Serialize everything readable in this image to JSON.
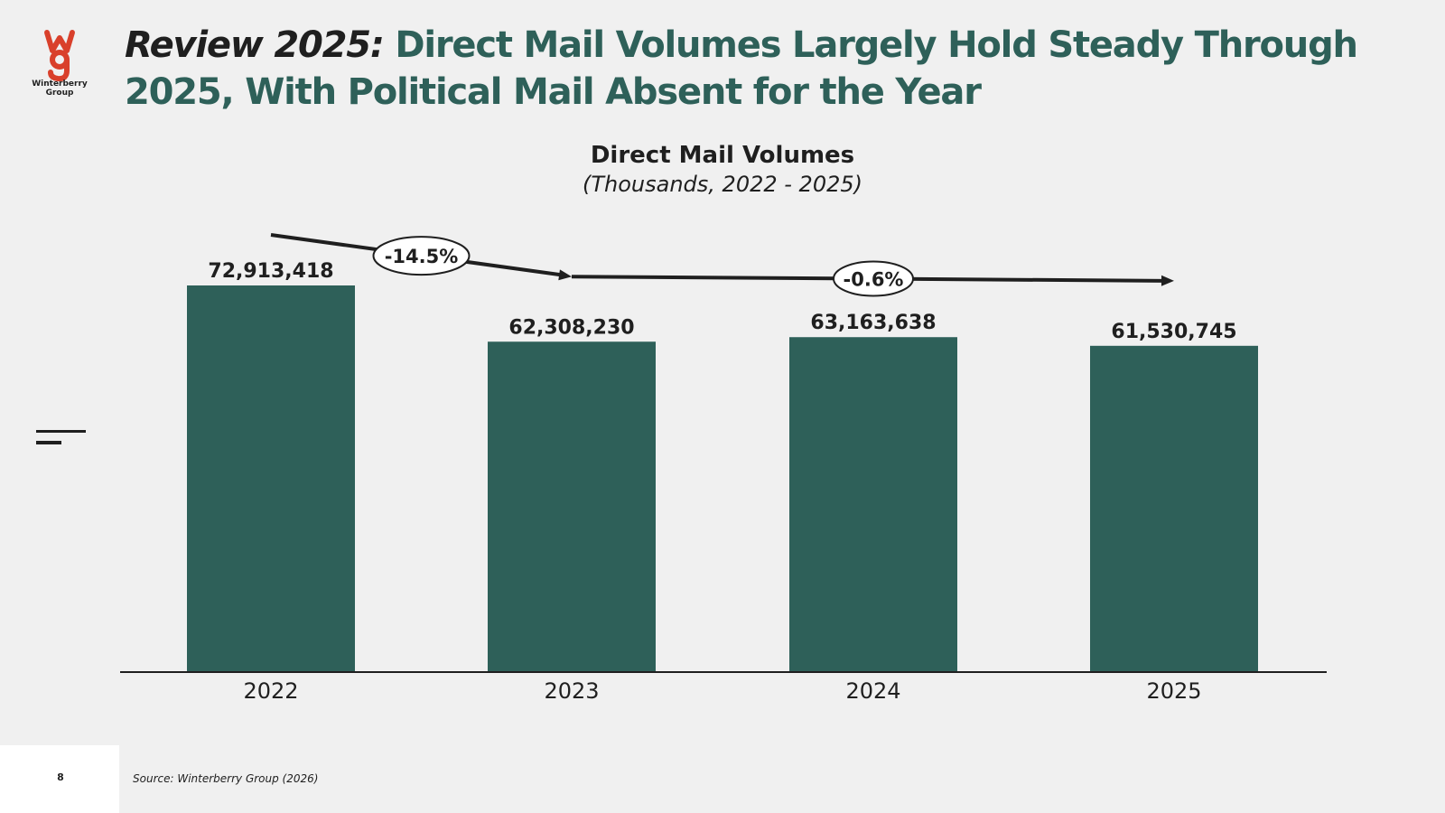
{
  "logo": {
    "text_line1": "Winterberry",
    "text_line2": "Group",
    "color": "#d9402b"
  },
  "headline": {
    "lead": "Review 2025:",
    "rest": "Direct Mail Volumes Largely Hold Steady Through 2025, With Political Mail Absent for the Year"
  },
  "colors": {
    "bar": "#2e6059",
    "title_accent": "#2e6059",
    "text": "#1f1f1f",
    "background": "#f0f0f0"
  },
  "chart_data": {
    "type": "bar",
    "title": "Direct Mail Volumes",
    "subtitle": "(Thousands, 2022 - 2025)",
    "categories": [
      "2022",
      "2023",
      "2024",
      "2025"
    ],
    "values": [
      72913418,
      62308230,
      63163638,
      61530745
    ],
    "value_labels": [
      "72,913,418",
      "62,308,230",
      "63,163,638",
      "61,530,745"
    ],
    "annotations": [
      {
        "label": "-14.5%",
        "from": "2022",
        "to": "2023"
      },
      {
        "label": "-0.6%",
        "from": "2023",
        "to": "2025"
      }
    ],
    "xlabel": "",
    "ylabel": "",
    "grid": false,
    "legend": "none"
  },
  "footer": {
    "page_number": "8",
    "source": "Source: Winterberry Group (2026)"
  }
}
